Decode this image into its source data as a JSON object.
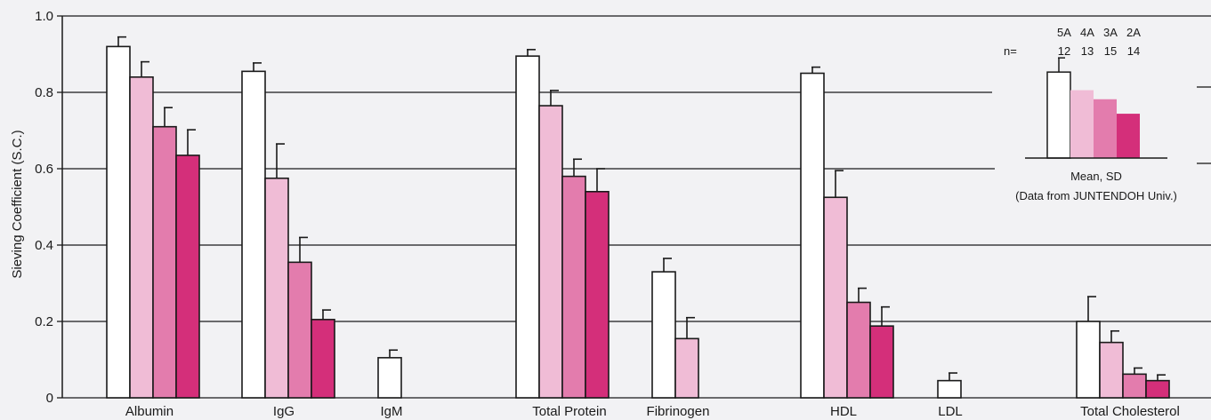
{
  "chart_data": {
    "type": "bar",
    "ylabel": "Sieving Coefficient (S.C.)",
    "ylim": [
      0,
      1.0
    ],
    "yticks": [
      "0",
      "0.2",
      "0.4",
      "0.6",
      "0.8",
      "1.0"
    ],
    "grid": true,
    "categories": [
      "Albumin",
      "IgG",
      "IgM",
      "Total Protein",
      "Fibrinogen",
      "HDL",
      "LDL",
      "Total Cholesterol"
    ],
    "series": [
      {
        "name": "5A",
        "n": 12,
        "color": "#ffffff",
        "values": [
          0.92,
          0.855,
          0.105,
          0.895,
          0.33,
          0.85,
          0.045,
          0.2
        ],
        "errors": [
          0.025,
          0.022,
          0.02,
          0.017,
          0.035,
          0.016,
          0.02,
          0.065
        ]
      },
      {
        "name": "4A",
        "n": 13,
        "color": "#f0bcd6",
        "values": [
          0.84,
          0.575,
          null,
          0.765,
          0.155,
          0.525,
          null,
          0.145
        ],
        "errors": [
          0.04,
          0.09,
          null,
          0.04,
          0.055,
          0.07,
          null,
          0.03
        ]
      },
      {
        "name": "3A",
        "n": 15,
        "color": "#e37cad",
        "values": [
          0.71,
          0.355,
          null,
          0.58,
          null,
          0.25,
          null,
          0.062
        ],
        "errors": [
          0.05,
          0.065,
          null,
          0.045,
          null,
          0.037,
          null,
          0.016
        ]
      },
      {
        "name": "2A",
        "n": 14,
        "color": "#d42f7a",
        "values": [
          0.635,
          0.205,
          null,
          0.54,
          null,
          0.188,
          null,
          0.045
        ],
        "errors": [
          0.067,
          0.025,
          null,
          0.06,
          null,
          0.05,
          null,
          0.015
        ]
      }
    ],
    "legend": {
      "placement": "top-right",
      "n_label": "n=",
      "footer": "Mean, SD",
      "source": "(Data from JUNTENDOH Univ.)",
      "bar_values": [
        0.92,
        0.72,
        0.62,
        0.46
      ]
    }
  }
}
